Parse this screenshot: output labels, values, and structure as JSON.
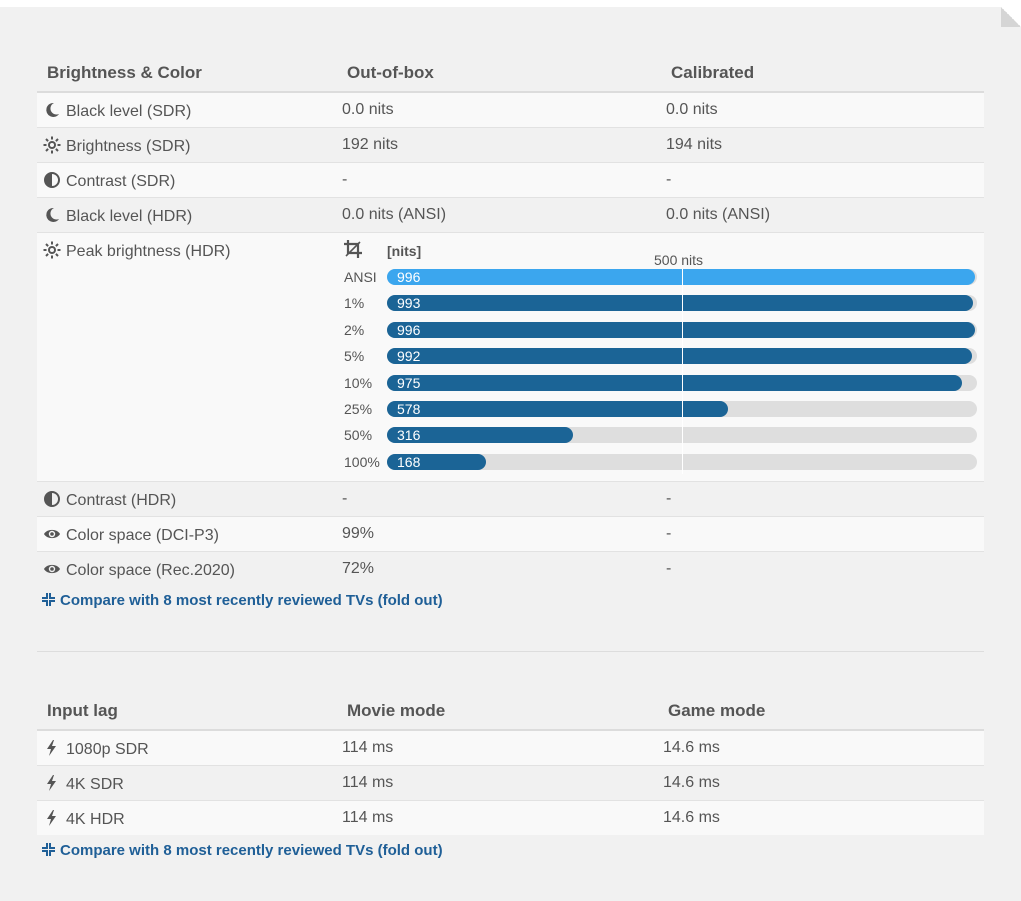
{
  "brightness_table": {
    "headers": [
      "Brightness & Color",
      "Out-of-box",
      "Calibrated"
    ],
    "rows": [
      {
        "icon": "moon-icon",
        "label": "Black level (SDR)",
        "out_of_box": "0.0 nits",
        "calibrated": "0.0 nits"
      },
      {
        "icon": "sun-icon",
        "label": "Brightness (SDR)",
        "out_of_box": "192 nits",
        "calibrated": "194 nits"
      },
      {
        "icon": "contrast-icon",
        "label": "Contrast (SDR)",
        "out_of_box": "-",
        "calibrated": "-"
      },
      {
        "icon": "moon-icon",
        "label": "Black level (HDR)",
        "out_of_box": "0.0 nits (ANSI)",
        "calibrated": "0.0 nits (ANSI)"
      },
      {
        "icon": "sun-icon",
        "label": "Peak brightness (HDR)"
      },
      {
        "icon": "contrast-icon",
        "label": "Contrast (HDR)",
        "out_of_box": "-",
        "calibrated": "-"
      },
      {
        "icon": "eye-icon",
        "label": "Color space (DCI-P3)",
        "out_of_box": "99%",
        "calibrated": "-"
      },
      {
        "icon": "eye-icon",
        "label": "Color space (Rec.2020)",
        "out_of_box": "72%",
        "calibrated": "-"
      }
    ],
    "compare_link": "Compare with 8 most recently reviewed TVs (fold out)"
  },
  "chart_data": {
    "type": "bar",
    "orientation": "horizontal",
    "unit_label": "[nits]",
    "categories": [
      "ANSI",
      "1%",
      "2%",
      "5%",
      "10%",
      "25%",
      "50%",
      "100%"
    ],
    "values": [
      996,
      993,
      996,
      992,
      975,
      578,
      316,
      168
    ],
    "highlighted_category": "ANSI",
    "xlim": [
      0,
      1000
    ],
    "reference_line": {
      "value": 500,
      "label": "500 nits"
    },
    "colors": {
      "bar": "#1b6496",
      "highlight": "#3ba6ee",
      "track": "#dedede"
    }
  },
  "input_lag_table": {
    "headers": [
      "Input lag",
      "Movie mode",
      "Game mode"
    ],
    "rows": [
      {
        "icon": "bolt-icon",
        "label": "1080p SDR",
        "movie": "114 ms",
        "game": "14.6 ms"
      },
      {
        "icon": "bolt-icon",
        "label": "4K SDR",
        "movie": "114 ms",
        "game": "14.6 ms"
      },
      {
        "icon": "bolt-icon",
        "label": "4K HDR",
        "movie": "114 ms",
        "game": "14.6 ms"
      }
    ],
    "compare_link": "Compare with 8 most recently reviewed TVs (fold out)"
  },
  "colors": {
    "link": "#1f5f97",
    "text": "#555555",
    "background": "#f1f1f1"
  }
}
